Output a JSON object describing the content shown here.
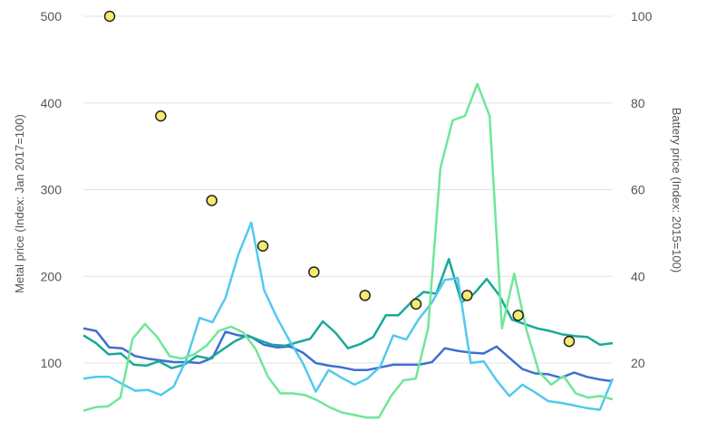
{
  "chart_data": {
    "type": "line",
    "ylabel_left": "Metal price (Index: Jan 2017=100)",
    "ylabel_right": "Battery price (Index: 2015=100)",
    "y_left_ticks": [
      "100",
      "200",
      "300",
      "400",
      "500"
    ],
    "y_right_ticks": [
      "20",
      "40",
      "60",
      "80",
      "100"
    ],
    "y_left_range": [
      60,
      510
    ],
    "y_right_range": [
      12,
      102
    ],
    "grid": true,
    "x_months": 48,
    "series": [
      {
        "color": "#3d6fd1",
        "values": [
          140,
          137,
          118,
          117,
          108,
          105,
          103,
          101,
          101,
          100,
          106,
          136,
          132,
          130,
          121,
          118,
          119,
          112,
          100,
          97,
          95,
          92,
          92,
          95,
          98,
          98,
          98,
          101,
          117,
          114,
          112,
          111,
          119,
          106,
          93,
          88,
          87,
          83,
          89,
          84,
          81,
          79
        ]
      },
      {
        "color": "#1aa89a",
        "values": [
          132,
          123,
          110,
          111,
          98,
          97,
          102,
          94,
          98,
          108,
          105,
          115,
          125,
          132,
          126,
          121,
          120,
          124,
          128,
          148,
          135,
          117,
          122,
          130,
          155,
          155,
          170,
          182,
          180,
          220,
          170,
          180,
          197,
          178,
          150,
          145,
          140,
          137,
          133,
          131,
          130,
          121,
          123
        ]
      },
      {
        "color": "#52c9ee",
        "values": [
          82,
          84,
          84,
          76,
          68,
          69,
          63,
          73,
          105,
          152,
          147,
          175,
          225,
          262,
          184,
          152,
          125,
          100,
          67,
          92,
          83,
          75,
          82,
          96,
          132,
          127,
          151,
          170,
          196,
          198,
          100,
          102,
          80,
          62,
          75,
          66,
          56,
          54,
          51,
          48,
          46,
          82
        ]
      },
      {
        "color": "#6fe69a",
        "values": [
          45,
          49,
          50,
          60,
          128,
          145,
          130,
          108,
          105,
          110,
          120,
          137,
          142,
          135,
          116,
          84,
          65,
          65,
          63,
          57,
          49,
          43,
          40,
          37,
          37,
          62,
          80,
          82,
          140,
          325,
          380,
          385,
          422,
          385,
          140,
          203,
          138,
          90,
          75,
          85,
          65,
          60,
          62,
          58
        ]
      },
      {
        "color": "#f7eb6e",
        "axis": "right",
        "values": [
          100,
          77,
          57.5,
          47,
          41,
          35.6,
          33.6,
          35.6,
          31,
          25
        ]
      }
    ]
  }
}
